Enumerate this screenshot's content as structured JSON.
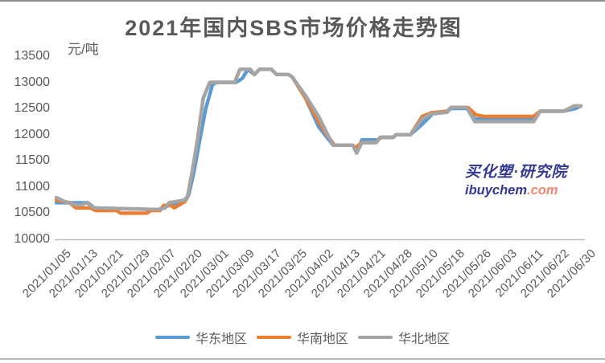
{
  "title": "2021年国内SBS市场价格走势图",
  "watermark": {
    "brand": "买化塑·研究院",
    "site_main": "ibuychem",
    "site_suffix": ".com",
    "brand_color": "#343A93",
    "suffix_color": "#F5876E"
  },
  "chart_data": {
    "type": "line",
    "title": "2021年国内SBS市场价格走势图",
    "ylabel": "元/吨",
    "ylim": [
      10000,
      13500
    ],
    "y_tick_step": 500,
    "y_tick_labels": [
      "13500",
      "13000",
      "12500",
      "12000",
      "11500",
      "11000",
      "10500",
      "10000"
    ],
    "grid": false,
    "legend_position": "bottom",
    "axis_color": "#BFBFBF",
    "label_color": "#595959",
    "categories": [
      "2021/01/05",
      "2021/01/13",
      "2021/01/21",
      "2021/01/29",
      "2021/02/07",
      "2021/02/20",
      "2021/03/01",
      "2021/03/09",
      "2021/03/17",
      "2021/03/25",
      "2021/04/02",
      "2021/04/13",
      "2021/04/21",
      "2021/04/28",
      "2021/05/10",
      "2021/05/18",
      "2021/05/26",
      "2021/06/03",
      "2021/06/11",
      "2021/06/22",
      "2021/06/30"
    ],
    "series": [
      {
        "name": "华东地区",
        "color": "#5B9BD5",
        "values": [
          10700,
          10700,
          10600,
          10600,
          10600,
          10800,
          13000,
          13150,
          13250,
          13100,
          12150,
          11800,
          11900,
          12000,
          12250,
          12500,
          12300,
          12300,
          12300,
          12450,
          12500
        ],
        "shape_points": [
          [
            0,
            10700
          ],
          [
            0.4,
            10700
          ],
          [
            1.2,
            10700
          ],
          [
            1.45,
            10600
          ],
          [
            3.9,
            10570
          ],
          [
            4.15,
            10620
          ],
          [
            4.9,
            10750
          ],
          [
            5.05,
            10850
          ],
          [
            5.25,
            11300
          ],
          [
            5.45,
            11850
          ],
          [
            5.7,
            12500
          ],
          [
            5.95,
            12950
          ],
          [
            6.1,
            13000
          ],
          [
            6.85,
            13000
          ],
          [
            7.1,
            13080
          ],
          [
            7.3,
            13250
          ],
          [
            7.55,
            13150
          ],
          [
            7.75,
            13250
          ],
          [
            8.2,
            13250
          ],
          [
            8.4,
            13150
          ],
          [
            8.85,
            13150
          ],
          [
            9,
            13100
          ],
          [
            9.5,
            12700
          ],
          [
            10,
            12150
          ],
          [
            10.55,
            11800
          ],
          [
            11.3,
            11800
          ],
          [
            11.45,
            11650
          ],
          [
            11.65,
            11900
          ],
          [
            12.25,
            11900
          ],
          [
            12.4,
            11950
          ],
          [
            12.85,
            11950
          ],
          [
            12.95,
            12000
          ],
          [
            13.5,
            12000
          ],
          [
            13.95,
            12200
          ],
          [
            14.35,
            12400
          ],
          [
            14.9,
            12430
          ],
          [
            15.05,
            12500
          ],
          [
            15.65,
            12500
          ],
          [
            15.95,
            12300
          ],
          [
            18.2,
            12300
          ],
          [
            18.45,
            12450
          ],
          [
            19.35,
            12450
          ],
          [
            19.8,
            12500
          ],
          [
            20,
            12550
          ]
        ]
      },
      {
        "name": "华南地区",
        "color": "#ED7D31",
        "values": [
          10750,
          10600,
          10550,
          10500,
          10600,
          10800,
          13000,
          13250,
          13250,
          13100,
          12250,
          11800,
          11850,
          12000,
          12350,
          12500,
          12350,
          12350,
          12350,
          12450,
          12550
        ],
        "shape_points": [
          [
            0,
            10750
          ],
          [
            0.5,
            10700
          ],
          [
            0.75,
            10600
          ],
          [
            1.3,
            10600
          ],
          [
            1.5,
            10550
          ],
          [
            2.3,
            10550
          ],
          [
            2.45,
            10500
          ],
          [
            3.45,
            10500
          ],
          [
            3.6,
            10550
          ],
          [
            3.95,
            10550
          ],
          [
            4.1,
            10650
          ],
          [
            4.35,
            10650
          ],
          [
            4.5,
            10600
          ],
          [
            4.9,
            10720
          ],
          [
            5,
            10800
          ],
          [
            5.2,
            11350
          ],
          [
            5.4,
            11950
          ],
          [
            5.6,
            12700
          ],
          [
            5.85,
            13000
          ],
          [
            6.8,
            13000
          ],
          [
            7,
            13250
          ],
          [
            7.4,
            13250
          ],
          [
            7.55,
            13150
          ],
          [
            7.75,
            13250
          ],
          [
            8.2,
            13250
          ],
          [
            8.4,
            13150
          ],
          [
            8.85,
            13150
          ],
          [
            9,
            13100
          ],
          [
            9.5,
            12700
          ],
          [
            10,
            12250
          ],
          [
            10.25,
            12050
          ],
          [
            10.6,
            11800
          ],
          [
            11.3,
            11800
          ],
          [
            11.4,
            11750
          ],
          [
            11.65,
            11850
          ],
          [
            12.2,
            11850
          ],
          [
            12.35,
            11950
          ],
          [
            12.85,
            11950
          ],
          [
            12.95,
            12000
          ],
          [
            13.5,
            12000
          ],
          [
            13.95,
            12350
          ],
          [
            14.3,
            12420
          ],
          [
            14.9,
            12450
          ],
          [
            15.05,
            12520
          ],
          [
            15.7,
            12520
          ],
          [
            16,
            12380
          ],
          [
            16.3,
            12350
          ],
          [
            18.2,
            12350
          ],
          [
            18.45,
            12450
          ],
          [
            19.35,
            12450
          ],
          [
            19.75,
            12550
          ],
          [
            20,
            12550
          ]
        ]
      },
      {
        "name": "华北地区",
        "color": "#A5A5A5",
        "values": [
          10800,
          10650,
          10600,
          10600,
          10600,
          10800,
          13000,
          13250,
          13250,
          13100,
          12350,
          11800,
          11850,
          12000,
          12300,
          12500,
          12250,
          12250,
          12250,
          12450,
          12550
        ],
        "shape_points": [
          [
            0,
            10800
          ],
          [
            0.4,
            10700
          ],
          [
            0.9,
            10650
          ],
          [
            1.15,
            10700
          ],
          [
            1.45,
            10600
          ],
          [
            3.9,
            10570
          ],
          [
            4.15,
            10600
          ],
          [
            4.3,
            10700
          ],
          [
            4.9,
            10750
          ],
          [
            5,
            10800
          ],
          [
            5.2,
            11350
          ],
          [
            5.4,
            11950
          ],
          [
            5.6,
            12700
          ],
          [
            5.85,
            13000
          ],
          [
            6.8,
            13000
          ],
          [
            7,
            13250
          ],
          [
            7.4,
            13250
          ],
          [
            7.55,
            13150
          ],
          [
            7.75,
            13250
          ],
          [
            8.2,
            13250
          ],
          [
            8.4,
            13150
          ],
          [
            8.85,
            13150
          ],
          [
            9,
            13100
          ],
          [
            9.5,
            12750
          ],
          [
            10,
            12350
          ],
          [
            10.55,
            11800
          ],
          [
            11.3,
            11800
          ],
          [
            11.45,
            11650
          ],
          [
            11.65,
            11850
          ],
          [
            12.2,
            11850
          ],
          [
            12.35,
            11950
          ],
          [
            12.85,
            11950
          ],
          [
            12.95,
            12000
          ],
          [
            13.5,
            12000
          ],
          [
            13.95,
            12300
          ],
          [
            14.3,
            12400
          ],
          [
            14.9,
            12430
          ],
          [
            15.05,
            12520
          ],
          [
            15.65,
            12520
          ],
          [
            15.95,
            12250
          ],
          [
            18.2,
            12250
          ],
          [
            18.45,
            12450
          ],
          [
            19.35,
            12450
          ],
          [
            19.75,
            12550
          ],
          [
            20,
            12550
          ]
        ]
      }
    ]
  }
}
